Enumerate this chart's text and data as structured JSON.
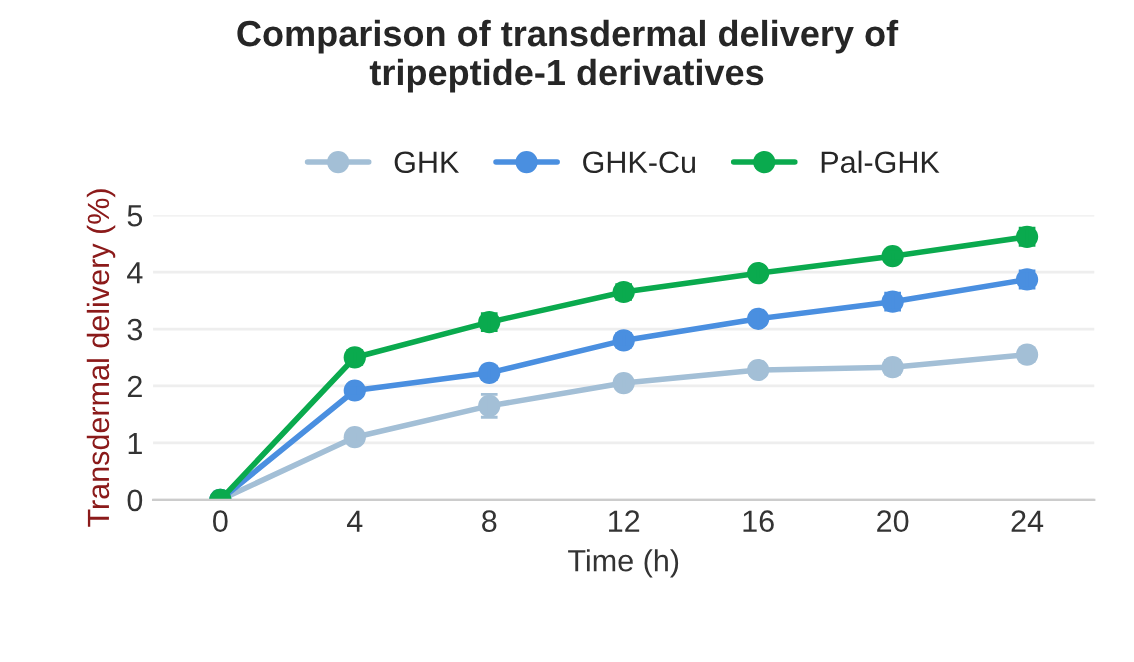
{
  "chart_data": {
    "type": "line",
    "title": "Comparison of transdermal delivery of\ntripeptide-1 derivatives",
    "xlabel": "Time (h)",
    "ylabel": "Transdermal delivery (%)",
    "categories": [
      "0",
      "4",
      "8",
      "12",
      "16",
      "20",
      "24"
    ],
    "series": [
      {
        "name": "GHK",
        "color": "#a3bfd6",
        "values": [
          0,
          1.1,
          1.65,
          2.05,
          2.28,
          2.33,
          2.55
        ],
        "errors": [
          null,
          0.1,
          0.2,
          0.1,
          0.08,
          0.12,
          0.12
        ]
      },
      {
        "name": "GHK-Cu",
        "color": "#4a8fe0",
        "values": [
          0,
          1.92,
          2.23,
          2.8,
          3.18,
          3.48,
          3.87
        ],
        "errors": [
          null,
          0.1,
          0.12,
          0.12,
          0.1,
          0.15,
          0.15
        ]
      },
      {
        "name": "Pal-GHK",
        "color": "#0aaa4e",
        "values": [
          0,
          2.5,
          3.12,
          3.65,
          3.98,
          4.28,
          4.62
        ],
        "errors": [
          null,
          0.12,
          0.15,
          0.13,
          0.1,
          0.08,
          0.15
        ]
      }
    ],
    "ylim": [
      0,
      5
    ],
    "yticks": [
      0,
      1,
      2,
      3,
      4,
      5
    ],
    "grid": "y",
    "legend": "top",
    "marker": "circle",
    "line_style": "solid"
  }
}
